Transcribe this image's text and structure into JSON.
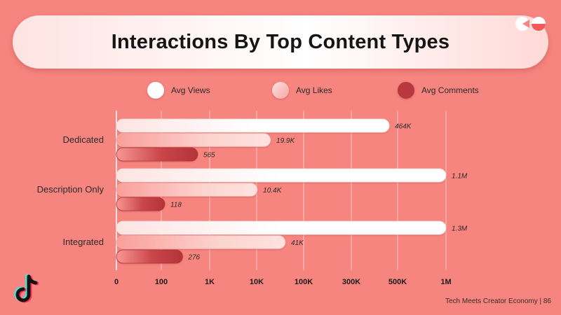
{
  "header": {
    "title": "Interactions By Top Content Types"
  },
  "legend": [
    {
      "label": "Avg Views",
      "color": "#ffffff"
    },
    {
      "label": "Avg Likes",
      "color": "#fbc7c3"
    },
    {
      "label": "Avg Comments",
      "color": "#b8383d"
    }
  ],
  "chart_data": {
    "type": "bar",
    "orientation": "horizontal",
    "categories": [
      "Dedicated",
      "Description Only",
      "Integrated"
    ],
    "series": [
      {
        "name": "Avg Views",
        "values": [
          464000,
          1100000,
          1300000
        ],
        "labels": [
          "464K",
          "1.1M",
          "1.3M"
        ]
      },
      {
        "name": "Avg Likes",
        "values": [
          19900,
          10400,
          41000
        ],
        "labels": [
          "19.9K",
          "10.4K",
          "41K"
        ]
      },
      {
        "name": "Avg Comments",
        "values": [
          565,
          118,
          276
        ],
        "labels": [
          "565",
          "118",
          "276"
        ]
      }
    ],
    "x_ticks": [
      {
        "label": "0",
        "value": 0
      },
      {
        "label": "100",
        "value": 100
      },
      {
        "label": "1K",
        "value": 1000
      },
      {
        "label": "10K",
        "value": 10000
      },
      {
        "label": "100K",
        "value": 100000
      },
      {
        "label": "300K",
        "value": 300000
      },
      {
        "label": "500K",
        "value": 500000
      },
      {
        "label": "1M",
        "value": 1000000
      }
    ],
    "x_scale": "nonlinear (tick-mapped)",
    "grid": "vertical",
    "legend_position": "top"
  },
  "footer": {
    "text": "Tech Meets Creator Economy | 86"
  }
}
